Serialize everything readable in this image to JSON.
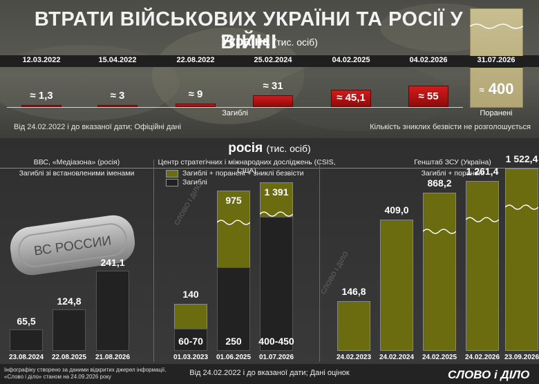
{
  "header": {
    "title": "ВТРАТИ ВІЙСЬКОВИХ УКРАЇНИ ТА РОСІЇ У ВІЙНІ"
  },
  "ukraine": {
    "name": "Україна",
    "unit": "(тис. осіб)",
    "dates": [
      "12.03.2022",
      "15.04.2022",
      "22.08.2022",
      "25.02.2024",
      "04.02.2025",
      "04.02.2026"
    ],
    "wounded_date": "31.07.2026",
    "dead_label": "Загиблі",
    "wounded_label": "Поранені",
    "note_left": "Від 24.02.2022 і до вказаної дати; Офіційні дані",
    "note_right": "Кількість зниклих безвісти не розголошується"
  },
  "russia": {
    "name": "росія",
    "unit": "(тис. осіб)",
    "footer_note": "Від 24.02.2022 і до вказаної дати; Дані оцінок",
    "mediazona": {
      "source": "ВВС, «Медіазона» (росія)",
      "subtitle": "Загиблі зі встановленими іменами",
      "tag_text": "ВС РОССИИ"
    },
    "csis": {
      "source": "Центр стратегічних і міжнародних досліджень (CSIS, США)",
      "legend_total": "Загиблі + поранені + зниклі безвісти",
      "legend_dead": "Загиблі"
    },
    "genshtab": {
      "source": "Генштаб ЗСУ (Україна)",
      "subtitle": "Загиблі + поранені"
    }
  },
  "footer": {
    "credit_line1": "Інфографіку створено за даними відкритих джерел інформації,",
    "credit_line2": "«Слово і діло» станом на 24.09.2026 року",
    "logo": "СЛОВО і ДІЛО",
    "watermark": "СЛОВО І ДІЛО"
  },
  "colors": {
    "ukraine_bar": "#c01414",
    "wounded_bar": "#bdb182",
    "olive_bar": "#6b6b10",
    "dark_bar": "#222222"
  },
  "chart_data": [
    {
      "type": "bar",
      "title": "Україна (тис. осіб)",
      "series": [
        {
          "name": "Загиблі",
          "categories": [
            "12.03.2022",
            "15.04.2022",
            "22.08.2022",
            "25.02.2024",
            "04.02.2025",
            "04.02.2026"
          ],
          "values": [
            1.3,
            3,
            9,
            31,
            45.1,
            55
          ],
          "labels": [
            "≈ 1,3",
            "≈ 3",
            "≈ 9",
            "≈ 31",
            "≈ 45,1",
            "≈ 55"
          ]
        },
        {
          "name": "Поранені",
          "categories": [
            "31.07.2026"
          ],
          "values": [
            400
          ],
          "labels": [
            "≈ 400"
          ]
        }
      ]
    },
    {
      "type": "bar",
      "title": "ВВС, «Медіазона» (росія)",
      "categories": [
        "23.08.2024",
        "22.08.2025",
        "21.08.2026"
      ],
      "values": [
        65.5,
        124.8,
        241.1
      ],
      "labels": [
        "65,5",
        "124,8",
        "241,1"
      ]
    },
    {
      "type": "bar",
      "title": "Центр стратегічних і міжнародних досліджень (CSIS, США)",
      "categories": [
        "01.03.2023",
        "01.06.2025",
        "01.07.2026"
      ],
      "series": [
        {
          "name": "Загиблі + поранені + зниклі безвісти",
          "values": [
            140,
            975,
            1391
          ],
          "labels": [
            "140",
            "975",
            "1 391"
          ]
        },
        {
          "name": "Загиблі",
          "values": [
            65,
            250,
            425
          ],
          "labels": [
            "60-70",
            "250",
            "400-450"
          ]
        }
      ]
    },
    {
      "type": "bar",
      "title": "Генштаб ЗСУ (Україна)",
      "categories": [
        "24.02.2023",
        "24.02.2024",
        "24.02.2025",
        "24.02.2026",
        "23.09.2026"
      ],
      "values": [
        146.8,
        409.0,
        868.2,
        1261.4,
        1522.4
      ],
      "labels": [
        "146,8",
        "409,0",
        "868,2",
        "1 261,4",
        "1 522,4"
      ]
    }
  ]
}
